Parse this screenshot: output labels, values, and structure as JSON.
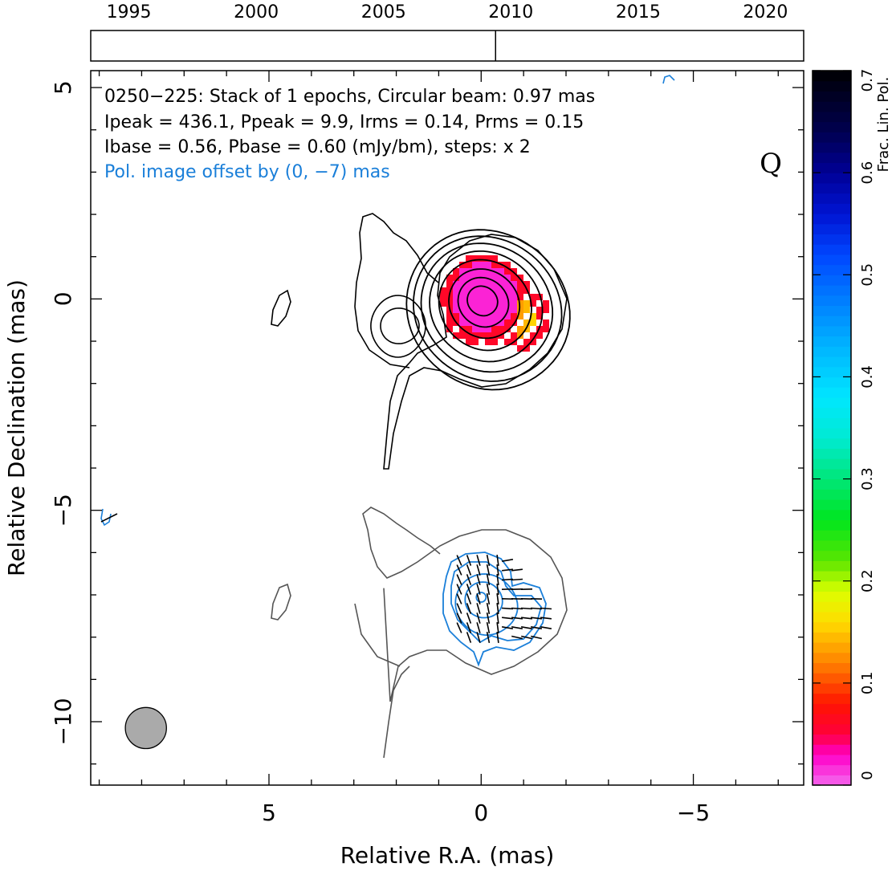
{
  "chart_data": {
    "type": "contour",
    "timeline": {
      "tick_labels": [
        "1995",
        "2000",
        "2005",
        "2010",
        "2015",
        "2020"
      ],
      "range": [
        1993.5,
        2021.5
      ],
      "epoch_markers": [
        2009.4
      ]
    },
    "annotation_lines": [
      "0250−225: Stack of 1 epochs, Circular beam: 0.97 mas",
      "Ipeak = 436.1, Ppeak = 9.9, Irms = 0.14, Prms = 0.15",
      "Ibase = 0.56, Pbase = 0.60 (mJy/bm), steps: x 2"
    ],
    "offset_note": "Pol. image offset by (0, −7) mas",
    "band_label": "Q",
    "xlabel": "Relative R.A. (mas)",
    "ylabel": "Relative Declination (mas)",
    "x_tick_labels": [
      "5",
      "0",
      "−5"
    ],
    "y_tick_labels": [
      "5",
      "0",
      "−5",
      "−10"
    ],
    "xlim": [
      9.2,
      -7.6
    ],
    "ylim": [
      -11.5,
      5.4
    ],
    "pol_offset": [
      0,
      -7
    ],
    "beam_diameter_mas": 0.97,
    "colorbar": {
      "label": "Frac. Lin. Pol.",
      "range": [
        0,
        0.7
      ],
      "tick_labels": [
        "0",
        "0.1",
        "0.2",
        "0.3",
        "0.4",
        "0.5",
        "0.6",
        "0.7"
      ]
    },
    "colors": {
      "stokes_i_contours": "#000000",
      "pol_total_i_contour": "#555555",
      "pol_contours": "#1a7fd9",
      "offset_note": "#1a7fd9",
      "beam": "#aaaaaa"
    }
  }
}
